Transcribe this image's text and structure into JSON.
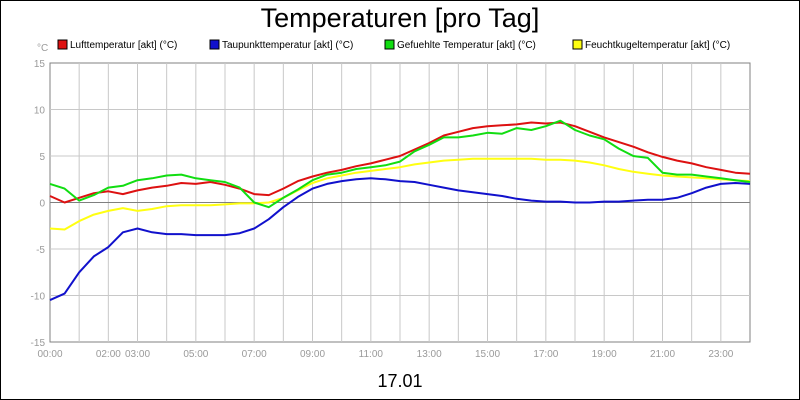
{
  "chart_data": {
    "type": "line",
    "title": "Temperaturen [pro Tag]",
    "ylabel": "°C",
    "date_label": "17.01",
    "ylim": [
      -15,
      15
    ],
    "yticks": [
      -15,
      -10,
      -5,
      0,
      5,
      10,
      15
    ],
    "xlim": [
      0,
      24
    ],
    "xtick_labels": [
      {
        "hour": 0,
        "label": "00:00"
      },
      {
        "hour": 2,
        "label": "02:00"
      },
      {
        "hour": 3,
        "label": "03:00"
      },
      {
        "hour": 5,
        "label": "05:00"
      },
      {
        "hour": 7,
        "label": "07:00"
      },
      {
        "hour": 9,
        "label": "09:00"
      },
      {
        "hour": 11,
        "label": "11:00"
      },
      {
        "hour": 13,
        "label": "13:00"
      },
      {
        "hour": 15,
        "label": "15:00"
      },
      {
        "hour": 17,
        "label": "17:00"
      },
      {
        "hour": 19,
        "label": "19:00"
      },
      {
        "hour": 21,
        "label": "21:00"
      },
      {
        "hour": 23,
        "label": "23:00"
      }
    ],
    "grid": true,
    "legend_position": "top",
    "x": [
      0,
      0.5,
      1,
      1.5,
      2,
      2.5,
      3,
      3.5,
      4,
      4.5,
      5,
      5.5,
      6,
      6.5,
      7,
      7.5,
      8,
      8.5,
      9,
      9.5,
      10,
      10.5,
      11,
      11.5,
      12,
      12.5,
      13,
      13.5,
      14,
      14.5,
      15,
      15.5,
      16,
      16.5,
      17,
      17.5,
      18,
      18.5,
      19,
      19.5,
      20,
      20.5,
      21,
      21.5,
      22,
      22.5,
      23,
      23.5,
      24
    ],
    "series": [
      {
        "name": "Lufttemperatur [akt] (°C)",
        "color": "#dd1111",
        "values": [
          0.7,
          0.0,
          0.5,
          1.0,
          1.2,
          0.9,
          1.3,
          1.6,
          1.8,
          2.1,
          2.0,
          2.2,
          1.9,
          1.5,
          0.9,
          0.8,
          1.5,
          2.3,
          2.8,
          3.2,
          3.5,
          3.9,
          4.2,
          4.6,
          5.0,
          5.7,
          6.4,
          7.2,
          7.6,
          8.0,
          8.2,
          8.3,
          8.4,
          8.6,
          8.5,
          8.6,
          8.2,
          7.6,
          7.0,
          6.5,
          6.0,
          5.4,
          4.9,
          4.5,
          4.2,
          3.8,
          3.5,
          3.2,
          3.1
        ]
      },
      {
        "name": "Taupunkttemperatur [akt] (°C)",
        "color": "#1111cc",
        "values": [
          -10.5,
          -9.8,
          -7.5,
          -5.8,
          -4.8,
          -3.2,
          -2.8,
          -3.2,
          -3.4,
          -3.4,
          -3.5,
          -3.5,
          -3.5,
          -3.3,
          -2.8,
          -1.8,
          -0.5,
          0.6,
          1.5,
          2.0,
          2.3,
          2.5,
          2.6,
          2.5,
          2.3,
          2.2,
          1.9,
          1.6,
          1.3,
          1.1,
          0.9,
          0.7,
          0.4,
          0.2,
          0.1,
          0.1,
          0.0,
          0.0,
          0.1,
          0.1,
          0.2,
          0.3,
          0.3,
          0.5,
          1.0,
          1.6,
          2.0,
          2.1,
          2.0
        ]
      },
      {
        "name": "Gefuehlte Temperatur [akt] (°C)",
        "color": "#11dd11",
        "values": [
          2.0,
          1.5,
          0.2,
          0.8,
          1.6,
          1.8,
          2.4,
          2.6,
          2.9,
          3.0,
          2.6,
          2.4,
          2.2,
          1.6,
          0.0,
          -0.5,
          0.5,
          1.4,
          2.4,
          3.0,
          3.2,
          3.6,
          3.8,
          4.0,
          4.4,
          5.5,
          6.2,
          7.0,
          7.0,
          7.2,
          7.5,
          7.4,
          8.0,
          7.8,
          8.2,
          8.8,
          7.8,
          7.2,
          6.8,
          5.8,
          5.0,
          4.8,
          3.2,
          3.0,
          3.0,
          2.8,
          2.6,
          2.4,
          2.2
        ]
      },
      {
        "name": "Feuchtkugeltemperatur [akt] (°C)",
        "color": "#ffff11",
        "values": [
          -2.8,
          -2.9,
          -2.0,
          -1.3,
          -0.9,
          -0.6,
          -0.9,
          -0.7,
          -0.4,
          -0.3,
          -0.3,
          -0.3,
          -0.2,
          -0.1,
          -0.1,
          0.0,
          0.5,
          1.3,
          2.1,
          2.6,
          2.9,
          3.2,
          3.4,
          3.6,
          3.8,
          4.1,
          4.3,
          4.5,
          4.6,
          4.7,
          4.7,
          4.7,
          4.7,
          4.7,
          4.6,
          4.6,
          4.5,
          4.3,
          4.0,
          3.6,
          3.3,
          3.1,
          2.9,
          2.8,
          2.7,
          2.6,
          2.5,
          2.4,
          2.3
        ]
      }
    ]
  }
}
